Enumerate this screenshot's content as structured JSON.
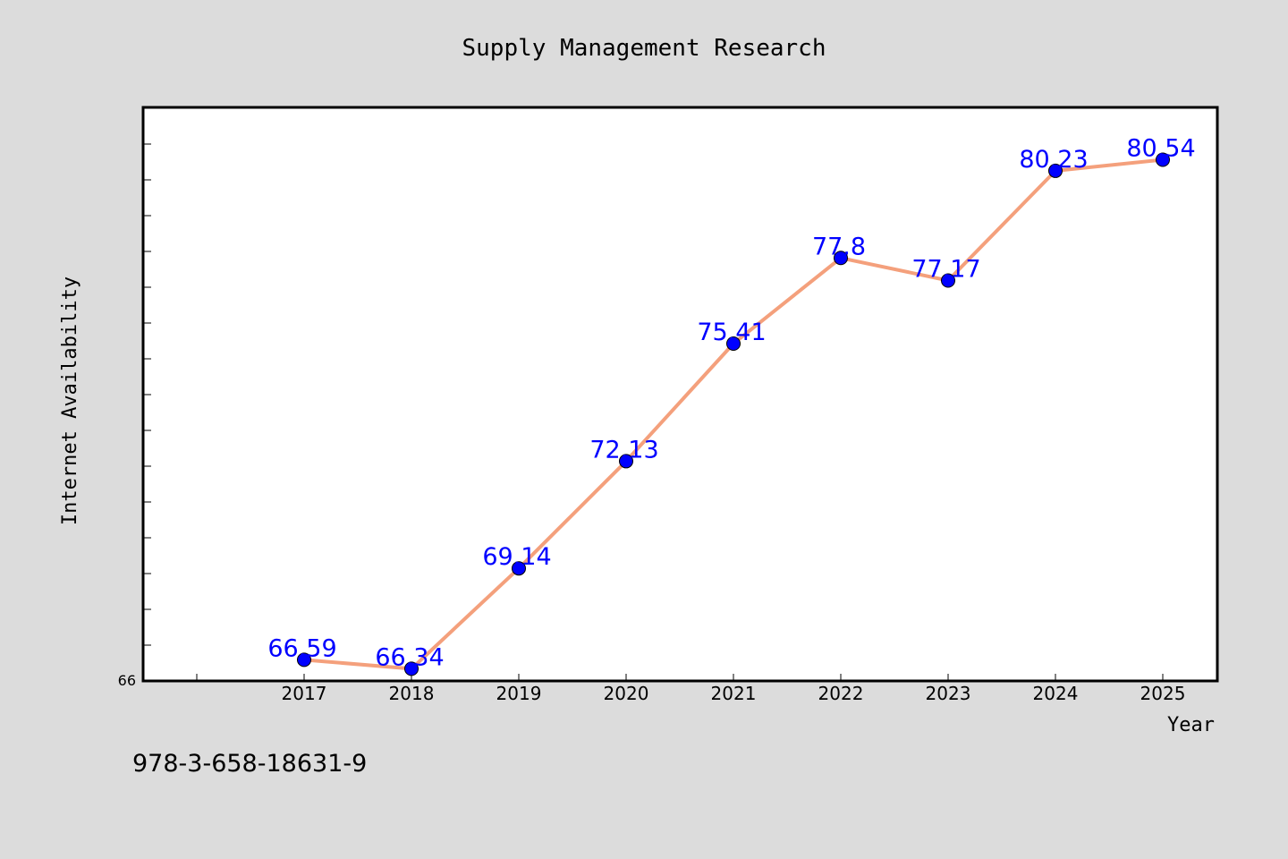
{
  "chart_data": {
    "type": "line",
    "title": "Supply Management Research",
    "xlabel": "Year",
    "ylabel": "Internet Availability",
    "categories": [
      "2017",
      "2018",
      "2019",
      "2020",
      "2021",
      "2022",
      "2023",
      "2024",
      "2025"
    ],
    "series": [
      {
        "values": [
          66.59,
          66.34,
          69.14,
          72.13,
          75.41,
          77.8,
          77.17,
          80.23,
          80.54
        ]
      }
    ],
    "data_labels": [
      "66.59",
      "66.34",
      "69.14",
      "72.13",
      "75.41",
      "77.8",
      "77.17",
      "80.23",
      "80.54"
    ],
    "ylim": [
      66,
      82
    ],
    "y_tick_label": "66",
    "grid": false,
    "line_color": "#f4a07c",
    "marker_color": "#0000ff",
    "label_color": "#0000ff",
    "background_color": "#dcdcdc",
    "plot_background_color": "#ffffff"
  },
  "footnote": "978-3-658-18631-9"
}
